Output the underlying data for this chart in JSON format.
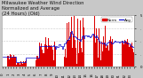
{
  "bg_color": "#c8c8c8",
  "plot_bg_color": "#ffffff",
  "grid_color": "#999999",
  "bar_color": "#dd0000",
  "line_color": "#0000cc",
  "legend_label_norm": "Norm",
  "legend_label_avg": "Avg",
  "ylim_lo": 0.0,
  "ylim_hi": 6.28,
  "n_points": 144,
  "title_fontsize": 3.8,
  "tick_fontsize": 2.8,
  "legend_fontsize": 3.0
}
